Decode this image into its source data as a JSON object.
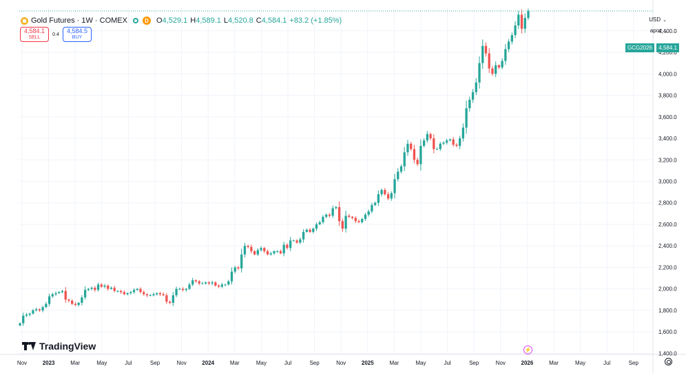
{
  "header": {
    "title": "Gold Futures · 1W · COMEX",
    "badge": "D",
    "ohlc": {
      "o_label": "O",
      "o": "4,529.1",
      "h_label": "H",
      "h": "4,589.1",
      "l_label": "L",
      "l": "4,520.8",
      "c_label": "C",
      "c": "4,584.1",
      "change": "+83.2 (+1.85%)"
    }
  },
  "trade": {
    "sell_price": "4,584.1",
    "sell_label": "SELL",
    "spread": "0.4",
    "buy_price": "4,584.5",
    "buy_label": "BUY"
  },
  "axis_controls": {
    "currency": "USD",
    "unit": "apoz"
  },
  "last_price": {
    "symbol": "GCG2026",
    "value": "4,584.1"
  },
  "branding": {
    "logo_text": "TradingView"
  },
  "colors": {
    "up": "#26a69a",
    "down": "#ef5350",
    "grid": "#f0f3fa",
    "text": "#131722"
  },
  "chart_data": {
    "type": "candlestick",
    "title": "Gold Futures · 1W · COMEX",
    "interval": "1W",
    "y_ticks": [
      1400,
      1600,
      1800,
      2000,
      2200,
      2400,
      2600,
      2800,
      3000,
      3200,
      3400,
      3600,
      3800,
      4000,
      4200,
      4400
    ],
    "y_tick_labels": [
      "1,400.0",
      "1,600.0",
      "1,800.0",
      "2,000.0",
      "2,200.0",
      "2,400.0",
      "2,600.0",
      "2,800.0",
      "3,000.0",
      "3,200.0",
      "3,400.0",
      "3,600.0",
      "3,800.0",
      "4,000.0",
      "4,200.0",
      "4,400.0"
    ],
    "ylim": [
      1390,
      4610
    ],
    "x_labels": [
      "Nov",
      "2023",
      "Mar",
      "May",
      "Jul",
      "Sep",
      "Nov",
      "2024",
      "Mar",
      "May",
      "Jul",
      "Sep",
      "Nov",
      "2025",
      "Mar",
      "May",
      "Jul",
      "Sep",
      "Nov",
      "2026",
      "Mar",
      "May",
      "Jul",
      "Sep"
    ],
    "x_label_bold": [
      false,
      true,
      false,
      false,
      false,
      false,
      false,
      true,
      false,
      false,
      false,
      false,
      false,
      true,
      false,
      false,
      false,
      false,
      false,
      true,
      false,
      false,
      false,
      false
    ],
    "grid": true,
    "last_price": 4584.1,
    "closes": [
      1680,
      1750,
      1760,
      1770,
      1800,
      1810,
      1800,
      1830,
      1860,
      1930,
      1950,
      1960,
      1970,
      1980,
      1900,
      1890,
      1860,
      1850,
      1870,
      1920,
      1990,
      2000,
      2010,
      1990,
      2040,
      2020,
      2030,
      2000,
      2010,
      1980,
      1980,
      1970,
      1950,
      1960,
      1970,
      1990,
      2000,
      1970,
      1950,
      1940,
      1940,
      1950,
      1960,
      1950,
      1940,
      1880,
      1870,
      1940,
      2000,
      2000,
      1990,
      2000,
      2040,
      2080,
      2070,
      2050,
      2050,
      2060,
      2050,
      2060,
      2030,
      2020,
      2040,
      2040,
      2070,
      2160,
      2200,
      2190,
      2320,
      2400,
      2390,
      2350,
      2320,
      2360,
      2380,
      2350,
      2320,
      2330,
      2350,
      2350,
      2330,
      2410,
      2380,
      2450,
      2450,
      2430,
      2460,
      2530,
      2550,
      2530,
      2560,
      2600,
      2620,
      2670,
      2690,
      2680,
      2750,
      2760,
      2630,
      2560,
      2680,
      2670,
      2660,
      2630,
      2620,
      2650,
      2690,
      2720,
      2780,
      2800,
      2880,
      2920,
      2880,
      2840,
      2890,
      3020,
      3090,
      3140,
      3270,
      3350,
      3300,
      3200,
      3160,
      3330,
      3380,
      3440,
      3400,
      3300,
      3300,
      3350,
      3360,
      3380,
      3390,
      3340,
      3330,
      3400,
      3500,
      3680,
      3760,
      3830,
      3920,
      4100,
      4260,
      4190,
      4050,
      4000,
      4080,
      4060,
      4120,
      4230,
      4300,
      4360,
      4450,
      4550,
      4420,
      4520,
      4584.1
    ]
  }
}
